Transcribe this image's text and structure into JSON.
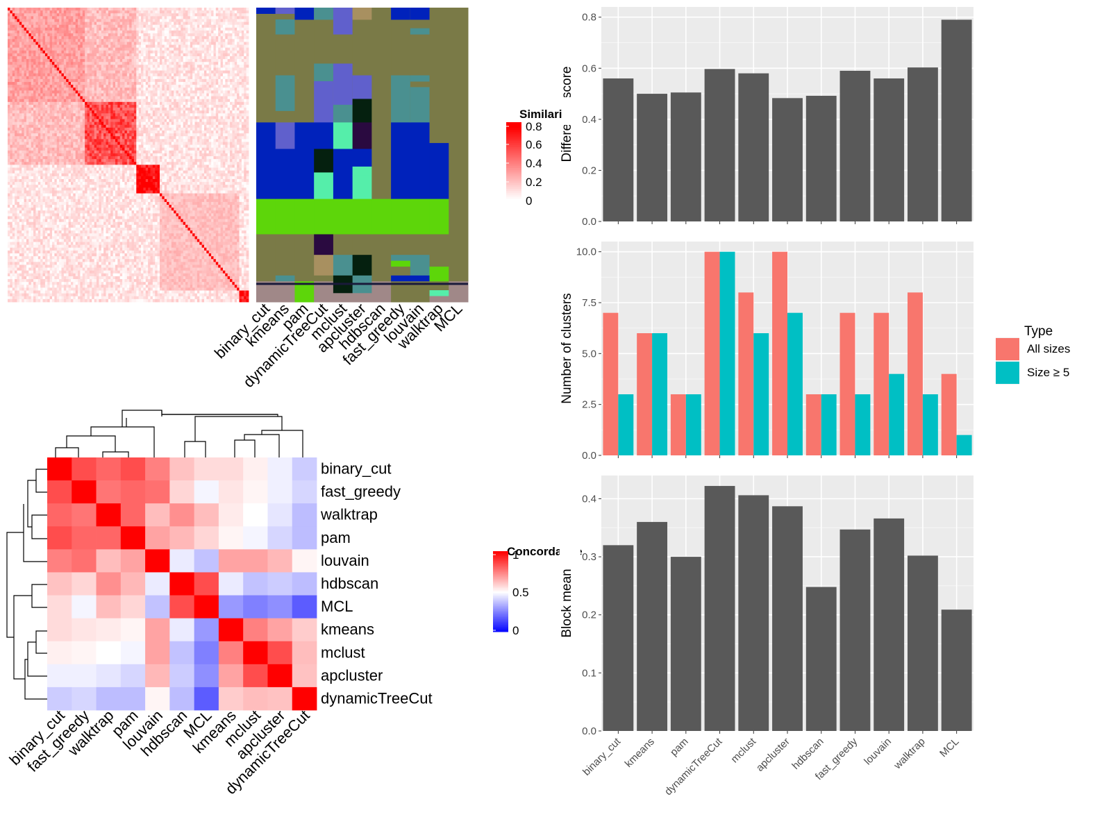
{
  "methods_similarity_order": [
    "binary_cut",
    "kmeans",
    "pam",
    "dynamicTreeCut",
    "mclust",
    "apcluster",
    "hdbscan",
    "fast_greedy",
    "louvain",
    "walktrap",
    "MCL"
  ],
  "legends": {
    "similarity": {
      "title": "Similarity",
      "ticks": [
        "0.8",
        "0.6",
        "0.4",
        "0.2",
        "0"
      ],
      "colors": [
        "#ffffff",
        "#ff0000"
      ]
    },
    "concordance": {
      "title": "Concordance",
      "ticks": [
        "1",
        "0.5",
        "0"
      ],
      "colors": [
        "#0000ff",
        "#ffffff",
        "#ff0000"
      ]
    },
    "type": {
      "title": "Type",
      "items": [
        {
          "label": "All sizes",
          "color": "#F8766D"
        },
        {
          "label": "Size ≥ 5",
          "color": "#00BFC4"
        }
      ]
    }
  },
  "concordance_order": [
    "binary_cut",
    "fast_greedy",
    "walktrap",
    "pam",
    "louvain",
    "hdbscan",
    "MCL",
    "kmeans",
    "mclust",
    "apcluster",
    "dynamicTreeCut"
  ],
  "chart_data": [
    {
      "type": "heatmap",
      "name": "similarity-matrix",
      "value_range": [
        0,
        0.8
      ],
      "blocks": [
        {
          "size": 33,
          "within": 0.3
        },
        {
          "size": 22,
          "within": 0.55
        },
        {
          "size": 10,
          "within": 0.8
        },
        {
          "size": 34,
          "within": 0.2
        },
        {
          "size": 4,
          "within": 0.8
        }
      ]
    },
    {
      "type": "heatmap",
      "name": "concordance-matrix",
      "rows": [
        "binary_cut",
        "fast_greedy",
        "walktrap",
        "pam",
        "louvain",
        "hdbscan",
        "MCL",
        "kmeans",
        "mclust",
        "apcluster",
        "dynamicTreeCut"
      ],
      "cols": [
        "binary_cut",
        "fast_greedy",
        "walktrap",
        "pam",
        "louvain",
        "hdbscan",
        "MCL",
        "kmeans",
        "mclust",
        "apcluster",
        "dynamicTreeCut"
      ],
      "value_range": [
        0,
        1
      ],
      "values": [
        [
          1.0,
          0.85,
          0.8,
          0.85,
          0.75,
          0.62,
          0.57,
          0.57,
          0.53,
          0.47,
          0.4
        ],
        [
          0.85,
          1.0,
          0.77,
          0.8,
          0.78,
          0.58,
          0.48,
          0.55,
          0.52,
          0.47,
          0.42
        ],
        [
          0.8,
          0.77,
          1.0,
          0.8,
          0.63,
          0.72,
          0.63,
          0.54,
          0.5,
          0.45,
          0.37
        ],
        [
          0.85,
          0.8,
          0.8,
          1.0,
          0.68,
          0.64,
          0.58,
          0.52,
          0.48,
          0.42,
          0.37
        ],
        [
          0.75,
          0.78,
          0.63,
          0.68,
          1.0,
          0.46,
          0.38,
          0.68,
          0.68,
          0.64,
          0.52
        ],
        [
          0.62,
          0.58,
          0.72,
          0.64,
          0.46,
          1.0,
          0.85,
          0.46,
          0.38,
          0.4,
          0.37
        ],
        [
          0.57,
          0.48,
          0.63,
          0.58,
          0.38,
          0.85,
          1.0,
          0.3,
          0.25,
          0.28,
          0.18
        ],
        [
          0.57,
          0.55,
          0.54,
          0.52,
          0.68,
          0.46,
          0.3,
          1.0,
          0.75,
          0.68,
          0.6
        ],
        [
          0.53,
          0.52,
          0.5,
          0.48,
          0.68,
          0.38,
          0.25,
          0.75,
          1.0,
          0.85,
          0.63
        ],
        [
          0.47,
          0.47,
          0.45,
          0.42,
          0.64,
          0.4,
          0.28,
          0.68,
          0.85,
          1.0,
          0.62
        ],
        [
          0.4,
          0.42,
          0.37,
          0.37,
          0.52,
          0.37,
          0.18,
          0.6,
          0.63,
          0.62,
          1.0
        ]
      ]
    },
    {
      "type": "bar",
      "name": "difference-score",
      "categories": [
        "binary_cut",
        "kmeans",
        "pam",
        "dynamicTreeCut",
        "mclust",
        "apcluster",
        "hdbscan",
        "fast_greedy",
        "louvain",
        "walktrap",
        "MCL"
      ],
      "values": [
        0.56,
        0.5,
        0.505,
        0.597,
        0.58,
        0.483,
        0.492,
        0.59,
        0.56,
        0.603,
        0.79
      ],
      "ylabel": "Difference score",
      "ylim": [
        0,
        0.84
      ],
      "yticks": [
        "0.0",
        "0.2",
        "0.4",
        "0.6",
        "0.8"
      ],
      "grid": true
    },
    {
      "type": "bar",
      "name": "number-of-clusters",
      "categories": [
        "binary_cut",
        "kmeans",
        "pam",
        "dynamicTreeCut",
        "mclust",
        "apcluster",
        "hdbscan",
        "fast_greedy",
        "louvain",
        "walktrap",
        "MCL"
      ],
      "series": [
        {
          "name": "All sizes",
          "values": [
            7,
            6,
            3,
            10,
            8,
            10,
            3,
            7,
            7,
            8,
            4
          ]
        },
        {
          "name": "Size ≥ 5",
          "values": [
            3,
            6,
            3,
            10,
            6,
            7,
            3,
            3,
            4,
            3,
            1
          ]
        }
      ],
      "ylabel": "Number of clusters",
      "ylim": [
        0,
        10.5
      ],
      "yticks": [
        "0.0",
        "2.5",
        "5.0",
        "7.5",
        "10.0"
      ],
      "grid": true,
      "legend": "right"
    },
    {
      "type": "bar",
      "name": "block-mean",
      "categories": [
        "binary_cut",
        "kmeans",
        "pam",
        "dynamicTreeCut",
        "mclust",
        "apcluster",
        "hdbscan",
        "fast_greedy",
        "louvain",
        "walktrap",
        "MCL"
      ],
      "values": [
        0.32,
        0.36,
        0.3,
        0.422,
        0.406,
        0.387,
        0.248,
        0.347,
        0.366,
        0.302,
        0.209
      ],
      "ylabel": "Block mean",
      "ylim": [
        0,
        0.44
      ],
      "yticks": [
        "0.0",
        "0.1",
        "0.2",
        "0.3",
        "0.4"
      ],
      "grid": true
    }
  ]
}
